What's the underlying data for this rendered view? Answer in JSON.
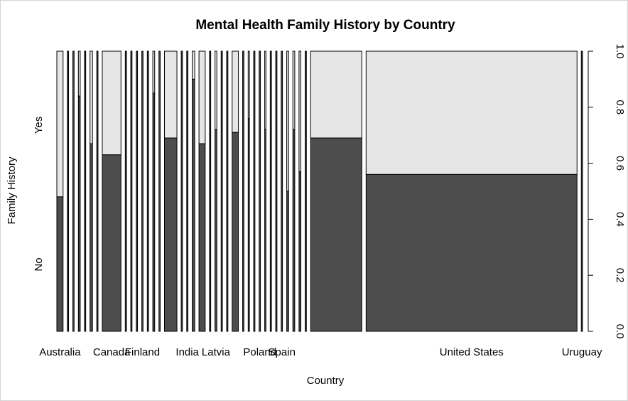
{
  "chart_data": {
    "type": "mosaic",
    "title": "Mental Health Family History by Country",
    "xlabel": "Country",
    "ylabel": "Family History",
    "ylim": [
      0,
      1
    ],
    "y_ticks": [
      "0.0",
      "0.2",
      "0.4",
      "0.6",
      "0.8",
      "1.0"
    ],
    "y_categories": [
      "No",
      "Yes"
    ],
    "colors": {
      "No": "#4d4d4d",
      "Yes": "#e6e6e6"
    },
    "x_tick_labels": [
      "Australia",
      "Canada",
      "Finland",
      "India",
      "Latvia",
      "Poland",
      "Spain",
      "United States",
      "Uruguay"
    ],
    "columns": [
      {
        "width": 0.01,
        "no": 0.48,
        "label": "Australia"
      },
      {
        "width": 0.002,
        "no": 1.0
      },
      {
        "width": 0.002,
        "no": 1.0
      },
      {
        "width": 0.003,
        "no": 0.84
      },
      {
        "width": 0.002,
        "no": 1.0
      },
      {
        "width": 0.004,
        "no": 0.67
      },
      {
        "width": 0.002,
        "no": 1.0
      },
      {
        "width": 0.03,
        "no": 0.63,
        "label": "Canada"
      },
      {
        "width": 0.002,
        "no": 1.0
      },
      {
        "width": 0.002,
        "no": 1.0
      },
      {
        "width": 0.002,
        "no": 1.0
      },
      {
        "width": 0.002,
        "no": 1.0,
        "label": "Finland"
      },
      {
        "width": 0.002,
        "no": 1.0
      },
      {
        "width": 0.003,
        "no": 0.85
      },
      {
        "width": 0.002,
        "no": 1.0
      },
      {
        "width": 0.02,
        "no": 0.69
      },
      {
        "width": 0.002,
        "no": 1.0
      },
      {
        "width": 0.002,
        "no": 1.0,
        "label": "India"
      },
      {
        "width": 0.004,
        "no": 0.9
      },
      {
        "width": 0.01,
        "no": 0.67
      },
      {
        "width": 0.002,
        "no": 1.0
      },
      {
        "width": 0.003,
        "no": 0.72,
        "label": "Latvia"
      },
      {
        "width": 0.002,
        "no": 1.0
      },
      {
        "width": 0.002,
        "no": 1.0
      },
      {
        "width": 0.01,
        "no": 0.71
      },
      {
        "width": 0.002,
        "no": 1.0
      },
      {
        "width": 0.002,
        "no": 0.76
      },
      {
        "width": 0.002,
        "no": 1.0
      },
      {
        "width": 0.002,
        "no": 1.0,
        "label": "Poland"
      },
      {
        "width": 0.002,
        "no": 0.72
      },
      {
        "width": 0.002,
        "no": 1.0
      },
      {
        "width": 0.002,
        "no": 1.0
      },
      {
        "width": 0.002,
        "no": 1.0,
        "label": "Spain"
      },
      {
        "width": 0.003,
        "no": 0.5
      },
      {
        "width": 0.003,
        "no": 0.72
      },
      {
        "width": 0.003,
        "no": 0.57
      },
      {
        "width": 0.002,
        "no": 1.0
      },
      {
        "width": 0.082,
        "no": 0.69
      },
      {
        "width": 0.338,
        "no": 0.56,
        "label": "United States"
      },
      {
        "width": 0.002,
        "no": 1.0,
        "label": "Uruguay"
      }
    ]
  }
}
